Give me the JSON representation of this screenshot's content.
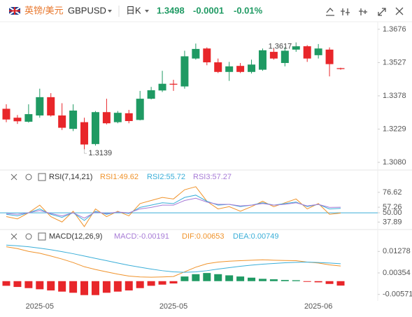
{
  "header": {
    "symbol_cn": "英镑/美元",
    "symbol": "GBPUSD",
    "period": "日K",
    "price": "1.3498",
    "change": "-0.0001",
    "change_pct": "-0.01%"
  },
  "chart_data": [
    {
      "type": "candlestick",
      "up_color": "#1f9a63",
      "down_color": "#e8262a",
      "categories": [
        null,
        null,
        null,
        "2025-05",
        null,
        null,
        null,
        null,
        null,
        null,
        null,
        null,
        null,
        null,
        null,
        "2025-05",
        null,
        null,
        null,
        null,
        null,
        null,
        null,
        null,
        null,
        null,
        null,
        null,
        "2025-06",
        null,
        null
      ],
      "open": [
        1.332,
        1.328,
        1.3262,
        1.329,
        1.3372,
        1.329,
        1.323,
        1.326,
        1.3162,
        1.3305,
        1.326,
        1.33,
        1.327,
        1.3365,
        1.3402,
        1.3432,
        1.342,
        1.3545,
        1.359,
        1.3528,
        1.3485,
        1.3512,
        1.3485,
        1.3495,
        1.3575,
        1.3525,
        1.3585,
        1.36,
        1.356,
        1.3585,
        1.3502
      ],
      "high": [
        1.334,
        1.3292,
        1.334,
        1.341,
        1.339,
        1.3345,
        1.334,
        1.328,
        1.331,
        1.3365,
        1.331,
        1.3315,
        1.34,
        1.3418,
        1.349,
        1.345,
        1.358,
        1.3612,
        1.3595,
        1.3545,
        1.353,
        1.3525,
        1.354,
        1.359,
        1.359,
        1.3595,
        1.3617,
        1.3605,
        1.361,
        1.3595,
        1.3504
      ],
      "low": [
        1.326,
        1.3252,
        1.3258,
        1.328,
        1.3285,
        1.3225,
        1.322,
        1.3139,
        1.3155,
        1.325,
        1.3255,
        1.3255,
        1.3268,
        1.3362,
        1.3395,
        1.34,
        1.341,
        1.354,
        1.3515,
        1.348,
        1.3445,
        1.348,
        1.3478,
        1.349,
        1.354,
        1.351,
        1.3575,
        1.353,
        1.3545,
        1.3465,
        1.3495
      ],
      "close": [
        1.3272,
        1.3264,
        1.3296,
        1.3372,
        1.329,
        1.3235,
        1.3312,
        1.316,
        1.3305,
        1.3255,
        1.3302,
        1.3265,
        1.3365,
        1.3403,
        1.3432,
        1.3428,
        1.3555,
        1.3588,
        1.3528,
        1.3485,
        1.351,
        1.3485,
        1.3518,
        1.3582,
        1.3545,
        1.358,
        1.36,
        1.3545,
        1.359,
        1.352,
        1.3498
      ],
      "max_label": "1.3617",
      "min_label": "1.3139",
      "ylim": [
        1.3055,
        1.371
      ],
      "yticks": [
        1.3676,
        1.3527,
        1.3378,
        1.3229,
        {
          "value": 1.308,
          "label": "1.3080"
        }
      ]
    },
    {
      "type": "line",
      "title": "RSI(7,14,21)",
      "series": [
        {
          "name": "RSI1:49.62",
          "color": "#f0932b",
          "values": [
            45,
            42,
            50,
            60,
            45,
            38,
            52,
            32,
            55,
            45,
            52,
            46,
            62,
            66,
            70,
            68,
            80,
            84,
            65,
            55,
            58,
            52,
            58,
            65,
            58,
            63,
            68,
            55,
            62,
            48,
            49.62
          ]
        },
        {
          "name": "RSI2:55.72",
          "color": "#3aaed8",
          "values": [
            48,
            46,
            50,
            55,
            48,
            44,
            50,
            40,
            52,
            48,
            51,
            49,
            57,
            60,
            63,
            62,
            70,
            73,
            65,
            60,
            61,
            58,
            60,
            63,
            60,
            62,
            64,
            58,
            61,
            55,
            55.72
          ]
        },
        {
          "name": "RSI3:57.27",
          "color": "#a77bd6",
          "values": [
            49,
            48,
            50,
            53,
            49,
            46,
            50,
            43,
            51,
            49,
            51,
            50,
            55,
            57,
            60,
            60,
            66,
            69,
            64,
            61,
            61,
            59,
            60,
            62,
            60,
            61,
            63,
            59,
            61,
            57,
            57.27
          ]
        }
      ],
      "hline": 50,
      "hline_color": "#3aaed8",
      "ylim": [
        30,
        92
      ],
      "yticks": [
        76.62,
        57.26,
        {
          "value": 50,
          "label": "50.00"
        },
        37.89
      ]
    },
    {
      "type": "macd",
      "title": "MACD(12,26,9)",
      "pos_color": "#1f9a63",
      "neg_color": "#e8262a",
      "series": [
        {
          "name": "MACD:-0.00191",
          "color": "#a77bd6",
          "kind": "bar",
          "values": [
            -0.002,
            -0.0025,
            -0.003,
            -0.0035,
            -0.004,
            -0.0045,
            -0.005,
            -0.006,
            -0.006,
            -0.005,
            -0.0045,
            -0.004,
            -0.003,
            -0.002,
            -0.0015,
            -0.001,
            0.002,
            0.003,
            0.0035,
            0.003,
            0.0025,
            0.002,
            0.0015,
            0.001,
            0.0008,
            0.0005,
            0.0004,
            -0.0002,
            -0.0005,
            -0.0012,
            -0.00191
          ]
        },
        {
          "name": "DIF:0.00653",
          "color": "#f0932b",
          "kind": "line",
          "values": [
            0.0148,
            0.014,
            0.0128,
            0.012,
            0.0108,
            0.0095,
            0.008,
            0.0062,
            0.005,
            0.004,
            0.003,
            0.0022,
            0.0018,
            0.0017,
            0.0018,
            0.002,
            0.004,
            0.006,
            0.0075,
            0.0082,
            0.0086,
            0.0088,
            0.009,
            0.0092,
            0.009,
            0.0089,
            0.0088,
            0.0082,
            0.0078,
            0.007,
            0.00653
          ]
        },
        {
          "name": "DEA:0.00749",
          "color": "#3aaed8",
          "kind": "line",
          "values": [
            0.0155,
            0.0152,
            0.0148,
            0.0142,
            0.0135,
            0.0127,
            0.0118,
            0.0108,
            0.0098,
            0.0088,
            0.0078,
            0.0068,
            0.006,
            0.0052,
            0.0045,
            0.004,
            0.0038,
            0.004,
            0.0045,
            0.0052,
            0.0058,
            0.0064,
            0.0069,
            0.0073,
            0.0076,
            0.0079,
            0.0081,
            0.0082,
            0.008,
            0.0078,
            0.00749
          ]
        }
      ],
      "ylim": [
        -0.0085,
        0.021
      ],
      "yticks": [
        0.01278,
        0.00354,
        -0.00571
      ]
    }
  ]
}
